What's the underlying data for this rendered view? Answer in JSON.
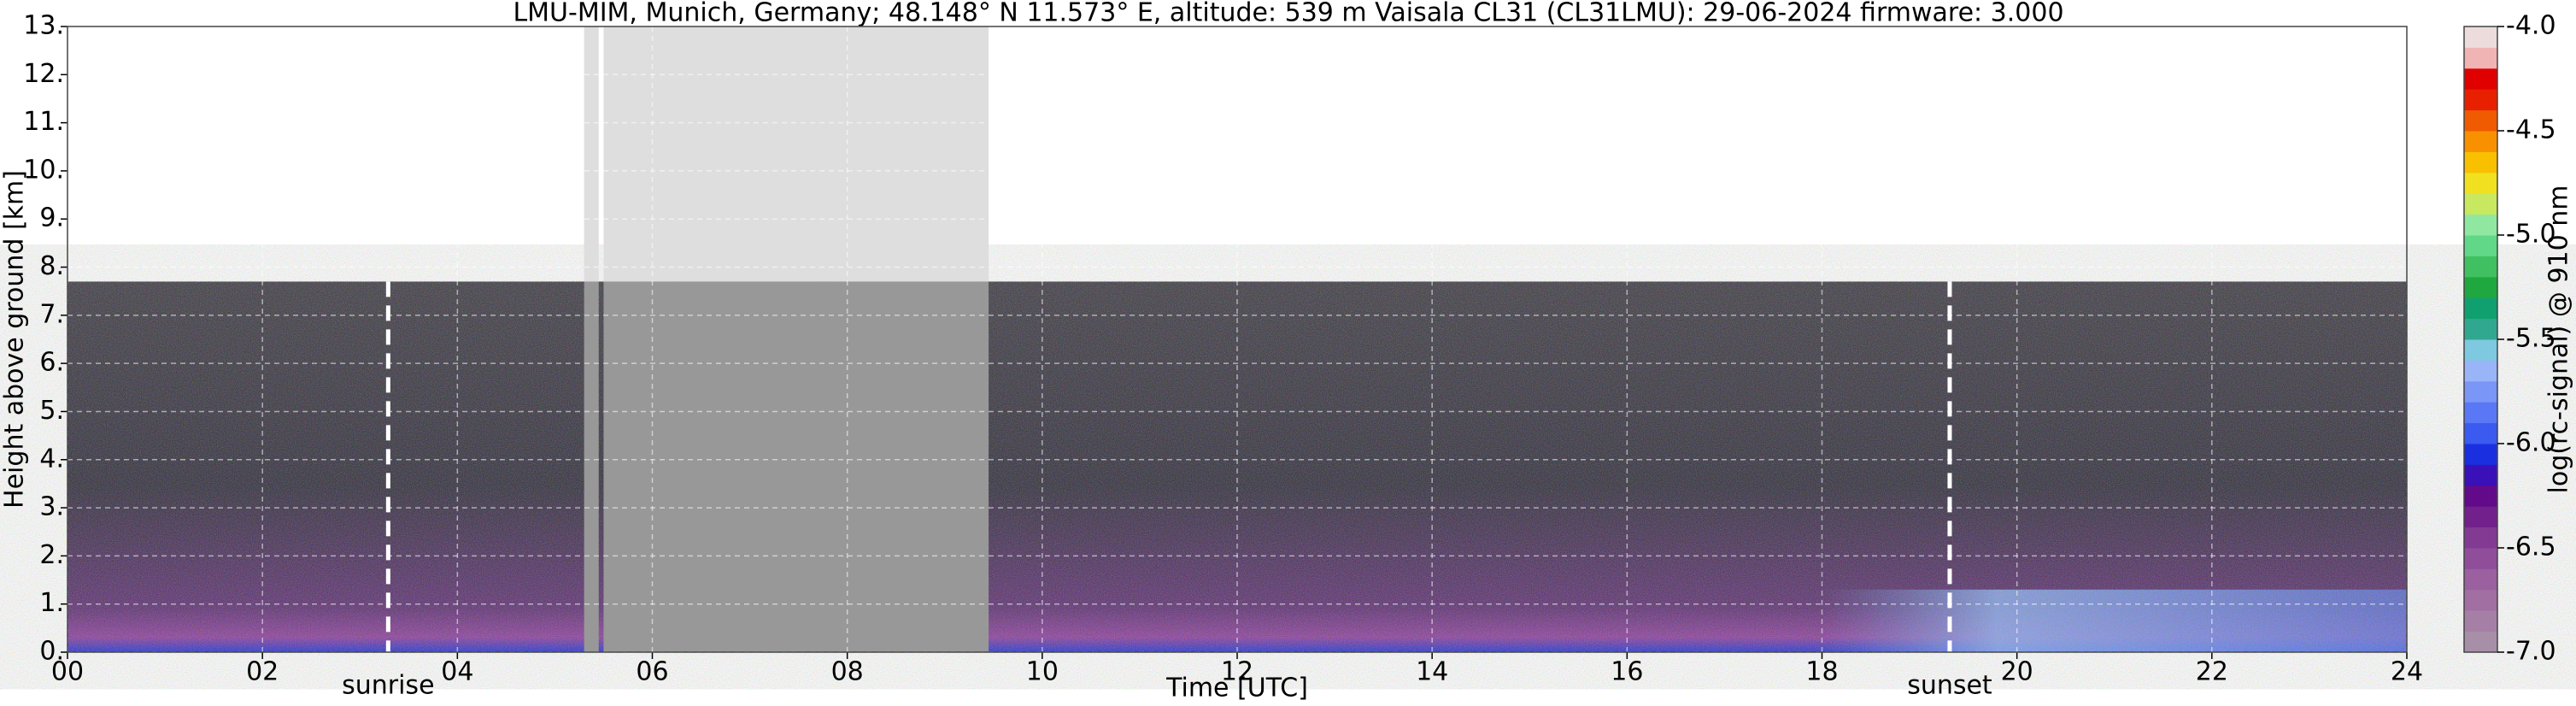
{
  "chart_data": {
    "type": "ceilometer",
    "title": "LMU-MIM, Munich, Germany; 48.148° N 11.573° E, altitude: 539 m    Vaisala CL31 (CL31LMU): 29-06-2024    firmware: 3.000",
    "x_label": "Time [UTC]",
    "y_label": "Height above ground [km]",
    "colorbar_label": "log(rc-signal) @ 910 nm",
    "xlim": [
      0,
      24
    ],
    "xticks": [
      {
        "value": 0,
        "label": "00"
      },
      {
        "value": 2,
        "label": "02"
      },
      {
        "value": 4,
        "label": "04"
      },
      {
        "value": 6,
        "label": "06"
      },
      {
        "value": 8,
        "label": "08"
      },
      10,
      12,
      14,
      16,
      18,
      20,
      22,
      24
    ],
    "ylim": [
      0,
      13
    ],
    "yticks": [
      {
        "value": 0,
        "label": "0."
      },
      {
        "value": 1,
        "label": "1."
      },
      {
        "value": 2,
        "label": "2."
      },
      {
        "value": 3,
        "label": "3."
      },
      {
        "value": 4,
        "label": "4."
      },
      {
        "value": 5,
        "label": "5."
      },
      {
        "value": 6,
        "label": "6."
      },
      {
        "value": 7,
        "label": "7."
      },
      {
        "value": 8,
        "label": "8."
      },
      {
        "value": 9,
        "label": "9."
      },
      {
        "value": 10,
        "label": "10."
      },
      {
        "value": 11,
        "label": "11."
      },
      {
        "value": 12,
        "label": "12."
      },
      {
        "value": 13,
        "label": "13."
      }
    ],
    "clim": [
      -7,
      -4
    ],
    "cticks": [
      {
        "value": -7,
        "label": "-7.0"
      },
      {
        "value": -6.5,
        "label": "-6.5"
      },
      {
        "value": -6,
        "label": "-6.0"
      },
      {
        "value": -5.5,
        "label": "-5.5"
      },
      {
        "value": -5,
        "label": "-5.0"
      },
      {
        "value": -4.5,
        "label": "-4.5"
      },
      {
        "value": -4,
        "label": "-4.0"
      }
    ],
    "colormap": [
      "#a88fa8",
      "#a67fa6",
      "#a16fa2",
      "#9a60a0",
      "#904e9a",
      "#823a93",
      "#72208c",
      "#620a8a",
      "#3a10b8",
      "#1a30e0",
      "#3a5af0",
      "#5a78f5",
      "#7a96f7",
      "#9ab4f8",
      "#7ec8e0",
      "#30a890",
      "#10a070",
      "#20a840",
      "#40c060",
      "#60d888",
      "#90e8a0",
      "#c8e860",
      "#f0e020",
      "#f8c000",
      "#f89000",
      "#f05a00",
      "#e82000",
      "#e00000",
      "#f0b4b4",
      "#ecdcdc"
    ],
    "grid": true,
    "data_top": 7.7,
    "no_data": [
      [
        5.3,
        5.45
      ],
      [
        5.5,
        9.45
      ]
    ],
    "annotations": [
      {
        "text": "sunrise",
        "x": 3.29
      },
      {
        "text": "sunset",
        "x": 19.31
      }
    ]
  }
}
